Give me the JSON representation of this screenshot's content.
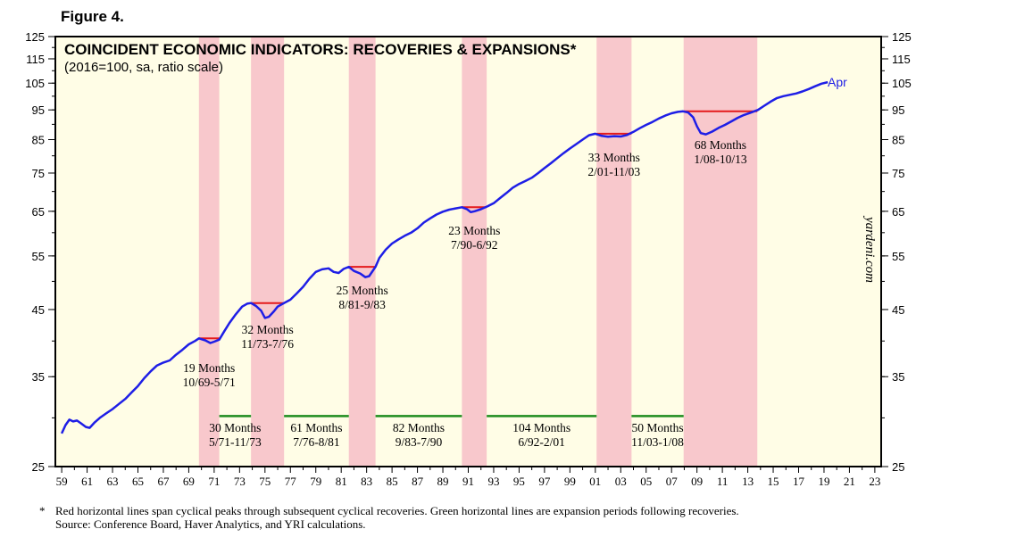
{
  "figure_label": "Figure 4.",
  "footnote": {
    "star": "*",
    "line1": "Red horizontal lines span cyclical peaks through subsequent cyclical recoveries. Green horizontal lines are expansion periods following recoveries.",
    "line2": "Source: Conference Board, Haver Analytics, and YRI calculations."
  },
  "colors": {
    "plot_bg": "#FFFDE6",
    "shade": "#F8C8CC",
    "series": "#1E1EE6",
    "red_line": "#E41A1C",
    "green_line": "#1E8C1E"
  },
  "chart_data": {
    "type": "line",
    "title": "COINCIDENT ECONOMIC INDICATORS: RECOVERIES & EXPANSIONS*",
    "subtitle": "(2016=100, sa, ratio scale)",
    "watermark": "yardeni.com",
    "series_label": "Apr",
    "x_range": [
      1958.5,
      2023.5
    ],
    "x_tick_labels": [
      "59",
      "61",
      "63",
      "65",
      "67",
      "69",
      "71",
      "73",
      "75",
      "77",
      "79",
      "81",
      "83",
      "85",
      "87",
      "89",
      "91",
      "93",
      "95",
      "97",
      "99",
      "01",
      "03",
      "05",
      "07",
      "09",
      "11",
      "13",
      "15",
      "17",
      "19",
      "21",
      "23"
    ],
    "y_scale": "log",
    "y_range": [
      25,
      125
    ],
    "y_ticks": [
      25,
      35,
      45,
      55,
      65,
      75,
      85,
      95,
      105,
      115,
      125
    ],
    "y_tick_labels": [
      "25",
      "35",
      "45",
      "55",
      "65",
      "75",
      "85",
      "95",
      "105",
      "115",
      "125"
    ],
    "series": [
      {
        "name": "Coincident Economic Indicators",
        "points": [
          [
            1959.0,
            28.3
          ],
          [
            1959.3,
            29.2
          ],
          [
            1959.6,
            29.8
          ],
          [
            1959.9,
            29.6
          ],
          [
            1960.2,
            29.7
          ],
          [
            1960.5,
            29.4
          ],
          [
            1960.9,
            29.0
          ],
          [
            1961.2,
            28.9
          ],
          [
            1961.6,
            29.5
          ],
          [
            1962.0,
            30.0
          ],
          [
            1962.5,
            30.5
          ],
          [
            1963.0,
            31.0
          ],
          [
            1963.5,
            31.6
          ],
          [
            1964.0,
            32.2
          ],
          [
            1964.5,
            33.0
          ],
          [
            1965.0,
            33.8
          ],
          [
            1965.5,
            34.8
          ],
          [
            1966.0,
            35.7
          ],
          [
            1966.5,
            36.5
          ],
          [
            1967.0,
            36.9
          ],
          [
            1967.5,
            37.2
          ],
          [
            1968.0,
            38.0
          ],
          [
            1968.5,
            38.7
          ],
          [
            1969.0,
            39.5
          ],
          [
            1969.5,
            40.0
          ],
          [
            1969.8,
            40.4
          ],
          [
            1970.3,
            40.1
          ],
          [
            1970.7,
            39.7
          ],
          [
            1971.0,
            39.9
          ],
          [
            1971.4,
            40.2
          ],
          [
            1971.8,
            41.5
          ],
          [
            1972.2,
            42.8
          ],
          [
            1972.7,
            44.2
          ],
          [
            1973.2,
            45.5
          ],
          [
            1973.6,
            46.0
          ],
          [
            1973.9,
            46.1
          ],
          [
            1974.3,
            45.6
          ],
          [
            1974.7,
            44.8
          ],
          [
            1975.0,
            43.6
          ],
          [
            1975.3,
            43.8
          ],
          [
            1975.7,
            44.7
          ],
          [
            1976.0,
            45.5
          ],
          [
            1976.5,
            46.1
          ],
          [
            1977.0,
            46.7
          ],
          [
            1977.5,
            47.8
          ],
          [
            1978.0,
            49.0
          ],
          [
            1978.5,
            50.5
          ],
          [
            1979.0,
            51.8
          ],
          [
            1979.5,
            52.3
          ],
          [
            1980.0,
            52.5
          ],
          [
            1980.4,
            51.8
          ],
          [
            1980.8,
            51.6
          ],
          [
            1981.2,
            52.4
          ],
          [
            1981.6,
            52.8
          ],
          [
            1982.0,
            52.0
          ],
          [
            1982.5,
            51.5
          ],
          [
            1982.9,
            50.8
          ],
          [
            1983.2,
            51.0
          ],
          [
            1983.7,
            52.8
          ],
          [
            1984.0,
            54.6
          ],
          [
            1984.5,
            56.3
          ],
          [
            1985.0,
            57.6
          ],
          [
            1985.5,
            58.5
          ],
          [
            1986.0,
            59.3
          ],
          [
            1986.5,
            60.0
          ],
          [
            1987.0,
            61.0
          ],
          [
            1987.5,
            62.3
          ],
          [
            1988.0,
            63.3
          ],
          [
            1988.5,
            64.2
          ],
          [
            1989.0,
            64.9
          ],
          [
            1989.5,
            65.4
          ],
          [
            1990.0,
            65.7
          ],
          [
            1990.5,
            66.0
          ],
          [
            1990.9,
            65.5
          ],
          [
            1991.2,
            64.8
          ],
          [
            1991.5,
            65.0
          ],
          [
            1992.0,
            65.5
          ],
          [
            1992.5,
            66.2
          ],
          [
            1993.0,
            67.0
          ],
          [
            1993.5,
            68.3
          ],
          [
            1994.0,
            69.6
          ],
          [
            1994.5,
            71.0
          ],
          [
            1995.0,
            72.0
          ],
          [
            1995.5,
            72.8
          ],
          [
            1996.0,
            73.7
          ],
          [
            1996.5,
            75.0
          ],
          [
            1997.0,
            76.4
          ],
          [
            1997.5,
            77.8
          ],
          [
            1998.0,
            79.3
          ],
          [
            1998.5,
            80.8
          ],
          [
            1999.0,
            82.2
          ],
          [
            1999.5,
            83.6
          ],
          [
            2000.0,
            85.0
          ],
          [
            2000.5,
            86.4
          ],
          [
            2001.0,
            86.9
          ],
          [
            2001.5,
            86.2
          ],
          [
            2002.0,
            85.9
          ],
          [
            2002.5,
            86.1
          ],
          [
            2003.0,
            86.0
          ],
          [
            2003.5,
            86.5
          ],
          [
            2004.0,
            87.5
          ],
          [
            2004.5,
            88.7
          ],
          [
            2005.0,
            89.8
          ],
          [
            2005.5,
            90.8
          ],
          [
            2006.0,
            92.0
          ],
          [
            2006.5,
            93.0
          ],
          [
            2007.0,
            93.8
          ],
          [
            2007.5,
            94.3
          ],
          [
            2007.9,
            94.5
          ],
          [
            2008.3,
            94.1
          ],
          [
            2008.7,
            92.4
          ],
          [
            2009.0,
            89.3
          ],
          [
            2009.3,
            87.1
          ],
          [
            2009.7,
            86.7
          ],
          [
            2010.2,
            87.6
          ],
          [
            2010.7,
            88.8
          ],
          [
            2011.2,
            89.8
          ],
          [
            2011.7,
            91.0
          ],
          [
            2012.2,
            92.2
          ],
          [
            2012.7,
            93.2
          ],
          [
            2013.2,
            94.0
          ],
          [
            2013.8,
            95.0
          ],
          [
            2014.3,
            96.5
          ],
          [
            2014.8,
            98.0
          ],
          [
            2015.3,
            99.3
          ],
          [
            2015.8,
            100.0
          ],
          [
            2016.3,
            100.5
          ],
          [
            2016.8,
            101.0
          ],
          [
            2017.3,
            101.8
          ],
          [
            2017.8,
            102.7
          ],
          [
            2018.3,
            103.8
          ],
          [
            2018.8,
            104.8
          ],
          [
            2019.3,
            105.4
          ]
        ]
      }
    ],
    "recessions": [
      {
        "start": 1969.8,
        "end": 1971.4,
        "peak": 40.4,
        "months": "19 Months",
        "dates": "10/69-5/71"
      },
      {
        "start": 1973.9,
        "end": 1976.5,
        "peak": 46.1,
        "months": "32 Months",
        "dates": "11/73-7/76"
      },
      {
        "start": 1981.6,
        "end": 1983.7,
        "peak": 52.8,
        "months": "25 Months",
        "dates": "8/81-9/83"
      },
      {
        "start": 1990.5,
        "end": 1992.45,
        "peak": 66.0,
        "months": "23 Months",
        "dates": "7/90-6/92"
      },
      {
        "start": 2001.1,
        "end": 2003.85,
        "peak": 86.9,
        "months": "33 Months",
        "dates": "2/01-11/03"
      },
      {
        "start": 2007.95,
        "end": 2013.75,
        "peak": 94.5,
        "months": "68 Months",
        "dates": "1/08-10/13"
      }
    ],
    "expansions": [
      {
        "start": 1971.4,
        "end": 1973.9,
        "months": "30 Months",
        "dates": "5/71-11/73"
      },
      {
        "start": 1976.5,
        "end": 1981.6,
        "months": "61 Months",
        "dates": "7/76-8/81"
      },
      {
        "start": 1983.7,
        "end": 1990.5,
        "months": "82 Months",
        "dates": "9/83-7/90"
      },
      {
        "start": 1992.45,
        "end": 2001.1,
        "months": "104 Months",
        "dates": "6/92-2/01"
      },
      {
        "start": 2003.85,
        "end": 2007.95,
        "months": "50 Months",
        "dates": "11/03-1/08"
      }
    ],
    "expansion_level": 30.2
  }
}
